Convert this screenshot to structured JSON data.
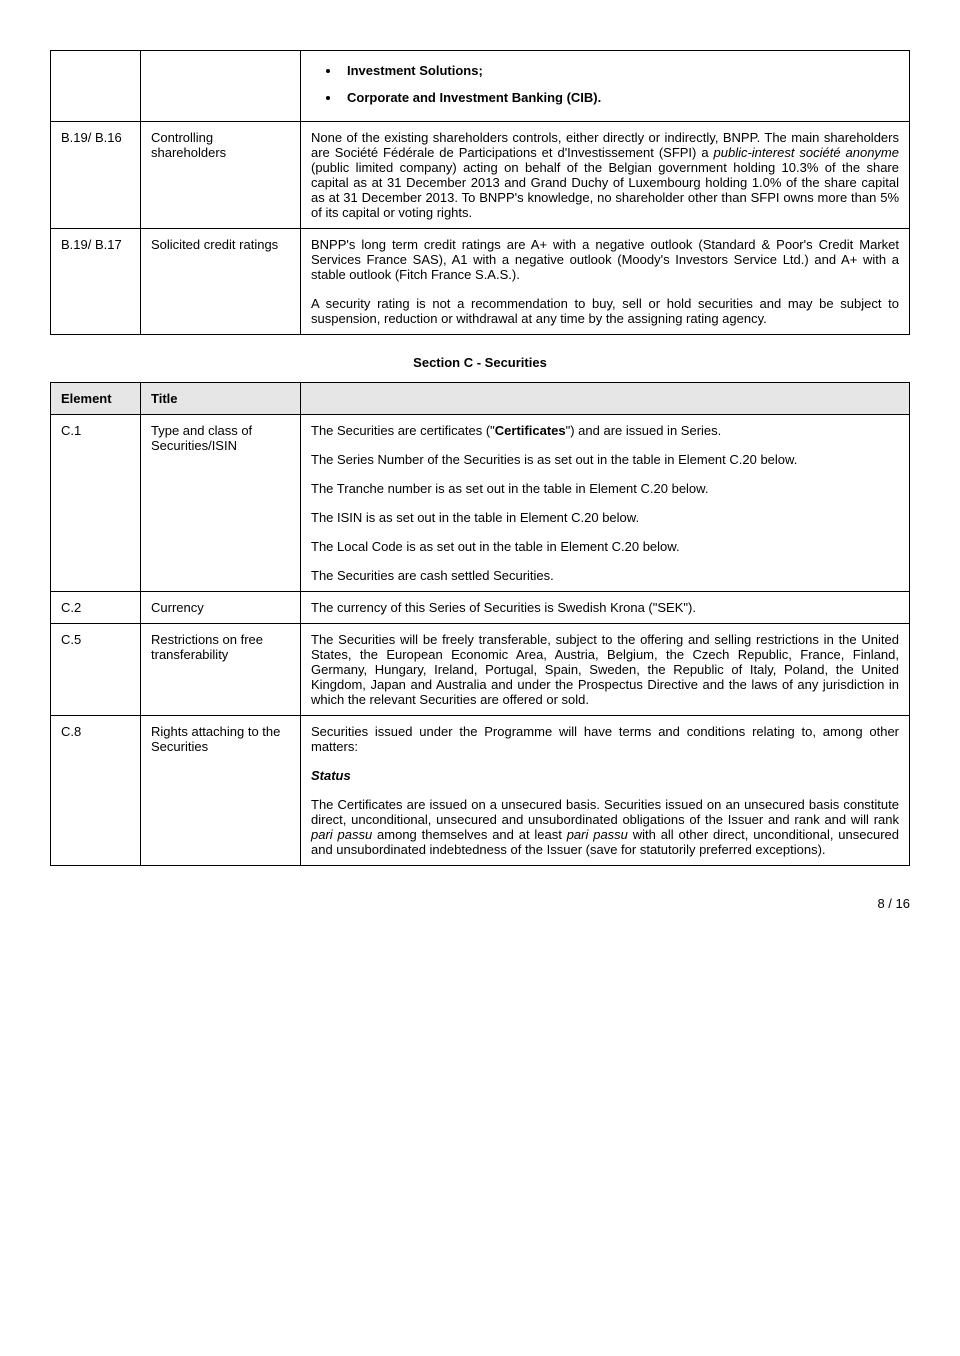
{
  "tableB": {
    "rows": [
      {
        "code": "",
        "title": "",
        "bullets": [
          "Investment Solutions;",
          "Corporate and Investment Banking (CIB)."
        ]
      },
      {
        "code": "B.19/ B.16",
        "title": "Controlling shareholders",
        "content": {
          "p1_a": "None of the existing shareholders controls, either directly or indirectly, BNPP. The main shareholders are Société Fédérale de Participations et d'Investissement (SFPI) a ",
          "p1_italic": "public-interest société anonyme",
          "p1_b": " (public limited company) acting on behalf of the Belgian government holding 10.3% of the share capital as at 31 December 2013 and Grand Duchy of Luxembourg holding 1.0% of the share capital as at 31 December 2013. To BNPP's knowledge, no shareholder other than SFPI owns more than 5% of its capital or voting rights."
        }
      },
      {
        "code": "B.19/ B.17",
        "title": "Solicited credit ratings",
        "content": {
          "p1": "BNPP's long term credit ratings are A+ with a negative outlook (Standard & Poor's Credit Market Services France SAS), A1 with a negative outlook (Moody's Investors Service Ltd.) and A+ with a stable outlook (Fitch France S.A.S.).",
          "p2": "A security rating is not a recommendation to buy, sell or hold securities and may be subject to suspension, reduction or withdrawal at any time by the assigning rating agency."
        }
      }
    ]
  },
  "sectionC": {
    "heading": "Section C - Securities",
    "headers": {
      "element": "Element",
      "title": "Title"
    },
    "rows": [
      {
        "code": "C.1",
        "title": "Type and class of Securities/ISIN",
        "content": {
          "p1_a": "The Securities are certificates (\"",
          "p1_bold": "Certificates",
          "p1_b": "\") and are issued in Series.",
          "p2": "The Series Number of the Securities is as set out in the table in Element C.20 below.",
          "p3": "The Tranche number is as set out in the table in Element C.20 below.",
          "p4": "The ISIN is as set out in the table in Element C.20 below.",
          "p5": "The Local Code is as set out in the table in Element C.20 below.",
          "p6": "The Securities are cash settled Securities."
        }
      },
      {
        "code": "C.2",
        "title": "Currency",
        "content": {
          "p1": "The currency of this Series of Securities is Swedish Krona (\"SEK\")."
        }
      },
      {
        "code": "C.5",
        "title": "Restrictions on free transferability",
        "content": {
          "p1": "The Securities will be freely transferable, subject to the offering and selling restrictions in the United States, the European Economic Area, Austria, Belgium, the Czech Republic, France, Finland, Germany, Hungary, Ireland, Portugal, Spain, Sweden, the Republic of Italy, Poland, the United Kingdom, Japan and Australia and under the Prospectus Directive and the laws of any jurisdiction in which the relevant Securities are offered or sold."
        }
      },
      {
        "code": "C.8",
        "title": "Rights attaching to the Securities",
        "content": {
          "p1": "Securities issued under the Programme will have terms and conditions relating to, among other matters:",
          "h1": "Status",
          "p2_a": "The Certificates are issued on a unsecured basis. Securities issued on an unsecured basis constitute direct, unconditional, unsecured and unsubordinated obligations of the Issuer and rank and will rank ",
          "p2_i1": "pari passu",
          "p2_b": " among themselves and at least ",
          "p2_i2": "pari passu",
          "p2_c": " with all other direct, unconditional, unsecured and unsubordinated indebtedness of the Issuer (save for statutorily preferred exceptions)."
        }
      }
    ]
  },
  "pageNumber": "8 / 16"
}
